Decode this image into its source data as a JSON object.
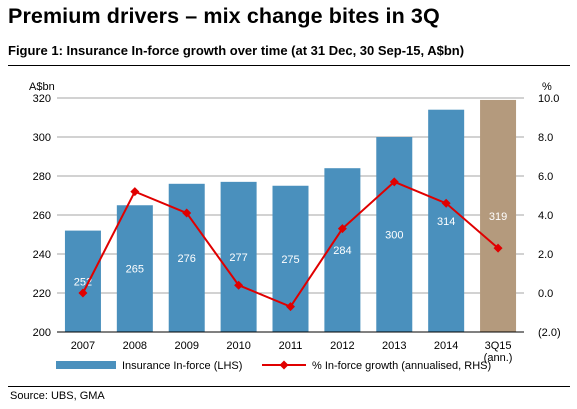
{
  "header": {
    "headline": "Premium drivers – mix change bites in 3Q",
    "figure_title": "Figure 1: Insurance In-force growth over time (at 31 Dec, 30 Sep-15, A$bn)"
  },
  "footer": {
    "source": "Source:  UBS, GMA"
  },
  "colors": {
    "bar": "#4a90bd",
    "bar_highlight": "#b49a7d",
    "line": "#e00000",
    "grid": "#a6a6a6"
  },
  "chart_data": {
    "type": "bar",
    "categories": [
      "2007",
      "2008",
      "2009",
      "2010",
      "2011",
      "2012",
      "2013",
      "2014",
      "3Q15\n(ann.)"
    ],
    "series": [
      {
        "name": "Insurance In-force (LHS)",
        "type": "bar",
        "axis": "left",
        "values": [
          252,
          265,
          276,
          277,
          275,
          284,
          300,
          314,
          319
        ],
        "data_labels": [
          "252",
          "265",
          "276",
          "277",
          "275",
          "284",
          "300",
          "314",
          "319"
        ],
        "highlight_index": 8
      },
      {
        "name": "% In-force growth (annualised, RHS)",
        "type": "line",
        "axis": "right",
        "marker": "diamond",
        "values": [
          0.0,
          5.2,
          4.1,
          0.4,
          -0.7,
          3.3,
          5.7,
          4.6,
          2.3
        ]
      }
    ],
    "y_left": {
      "label": "A$bn",
      "ylim": [
        200,
        320
      ],
      "ticks": [
        "200",
        "220",
        "240",
        "260",
        "280",
        "300",
        "320"
      ]
    },
    "y_right": {
      "label": "%",
      "ylim": [
        -2,
        10
      ],
      "ticks": [
        "(2.0)",
        "0.0",
        "2.0",
        "4.0",
        "6.0",
        "8.0",
        "10.0"
      ]
    },
    "grid": true,
    "legend_position": "bottom"
  }
}
